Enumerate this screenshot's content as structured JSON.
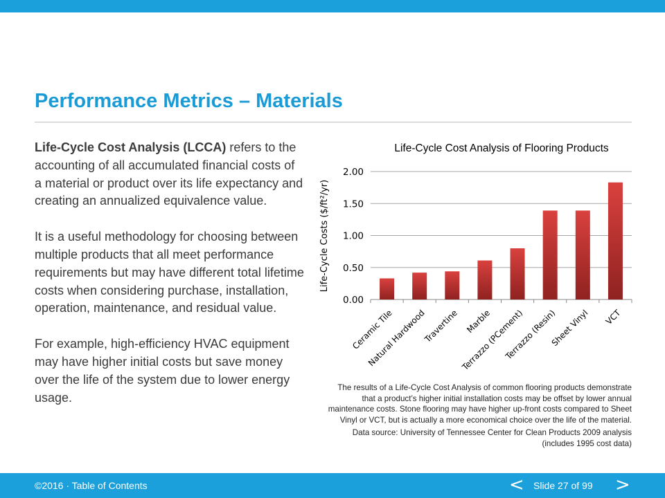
{
  "slide": {
    "title": "Performance Metrics – Materials",
    "intro_bold": "Life-Cycle Cost Analysis (LCCA)",
    "intro_rest": " refers to the accounting of all accumulated financial costs of a material or product over its life expectancy and creating an annualized equivalence value.",
    "paragraph2": "It is a useful methodology for choosing between multiple products that all meet performance requirements but may have different total lifetime costs when considering purchase, installation, operation, maintenance, and residual value.",
    "paragraph3": "For example, high-efficiency HVAC equipment may have higher initial costs but save money over the life of the system due to lower energy usage.",
    "caption1": "The results of a Life-Cycle Cost Analysis of common flooring products demonstrate that a product’s higher initial installation costs may be offset by lower annual maintenance costs. Stone flooring may have higher up-front costs compared to Sheet Vinyl or VCT, but is actually a more economical choice over the life of the material.",
    "caption2": "Data source: University of Tennessee Center for Clean Products 2009 analysis (includes 1995 cost data)"
  },
  "footer": {
    "copyright": "©2016 · ",
    "toc_link": "Table of Contents",
    "prev_symbol": "<",
    "slide_number": "Slide 27 of 99",
    "next_symbol": ">"
  },
  "colors": {
    "accent": "#1ba0db",
    "title": "#1b9bd6",
    "bar_top": "#d9413e",
    "bar_bottom": "#8f2220"
  },
  "chart_data": {
    "type": "bar",
    "title": "Life-Cycle Cost Analysis of Flooring Products",
    "ylabel": "Life-Cycle Costs ($/ft²/yr)",
    "xlabel": "",
    "categories": [
      "Ceramic Tile",
      "Natural Hardwood",
      "Travertine",
      "Marble",
      "Terrazzo (PCement)",
      "Terrazzo (Resin)",
      "Sheet Vinyl",
      "VCT"
    ],
    "values": [
      0.33,
      0.42,
      0.44,
      0.61,
      0.8,
      1.39,
      1.39,
      1.83
    ],
    "ylim": [
      0,
      2
    ],
    "yticks": [
      "0.00",
      "0.50",
      "1.00",
      "1.50",
      "2.00"
    ],
    "ytick_values": [
      0,
      0.5,
      1,
      1.5,
      2
    ],
    "grid": true,
    "legend": "none"
  }
}
